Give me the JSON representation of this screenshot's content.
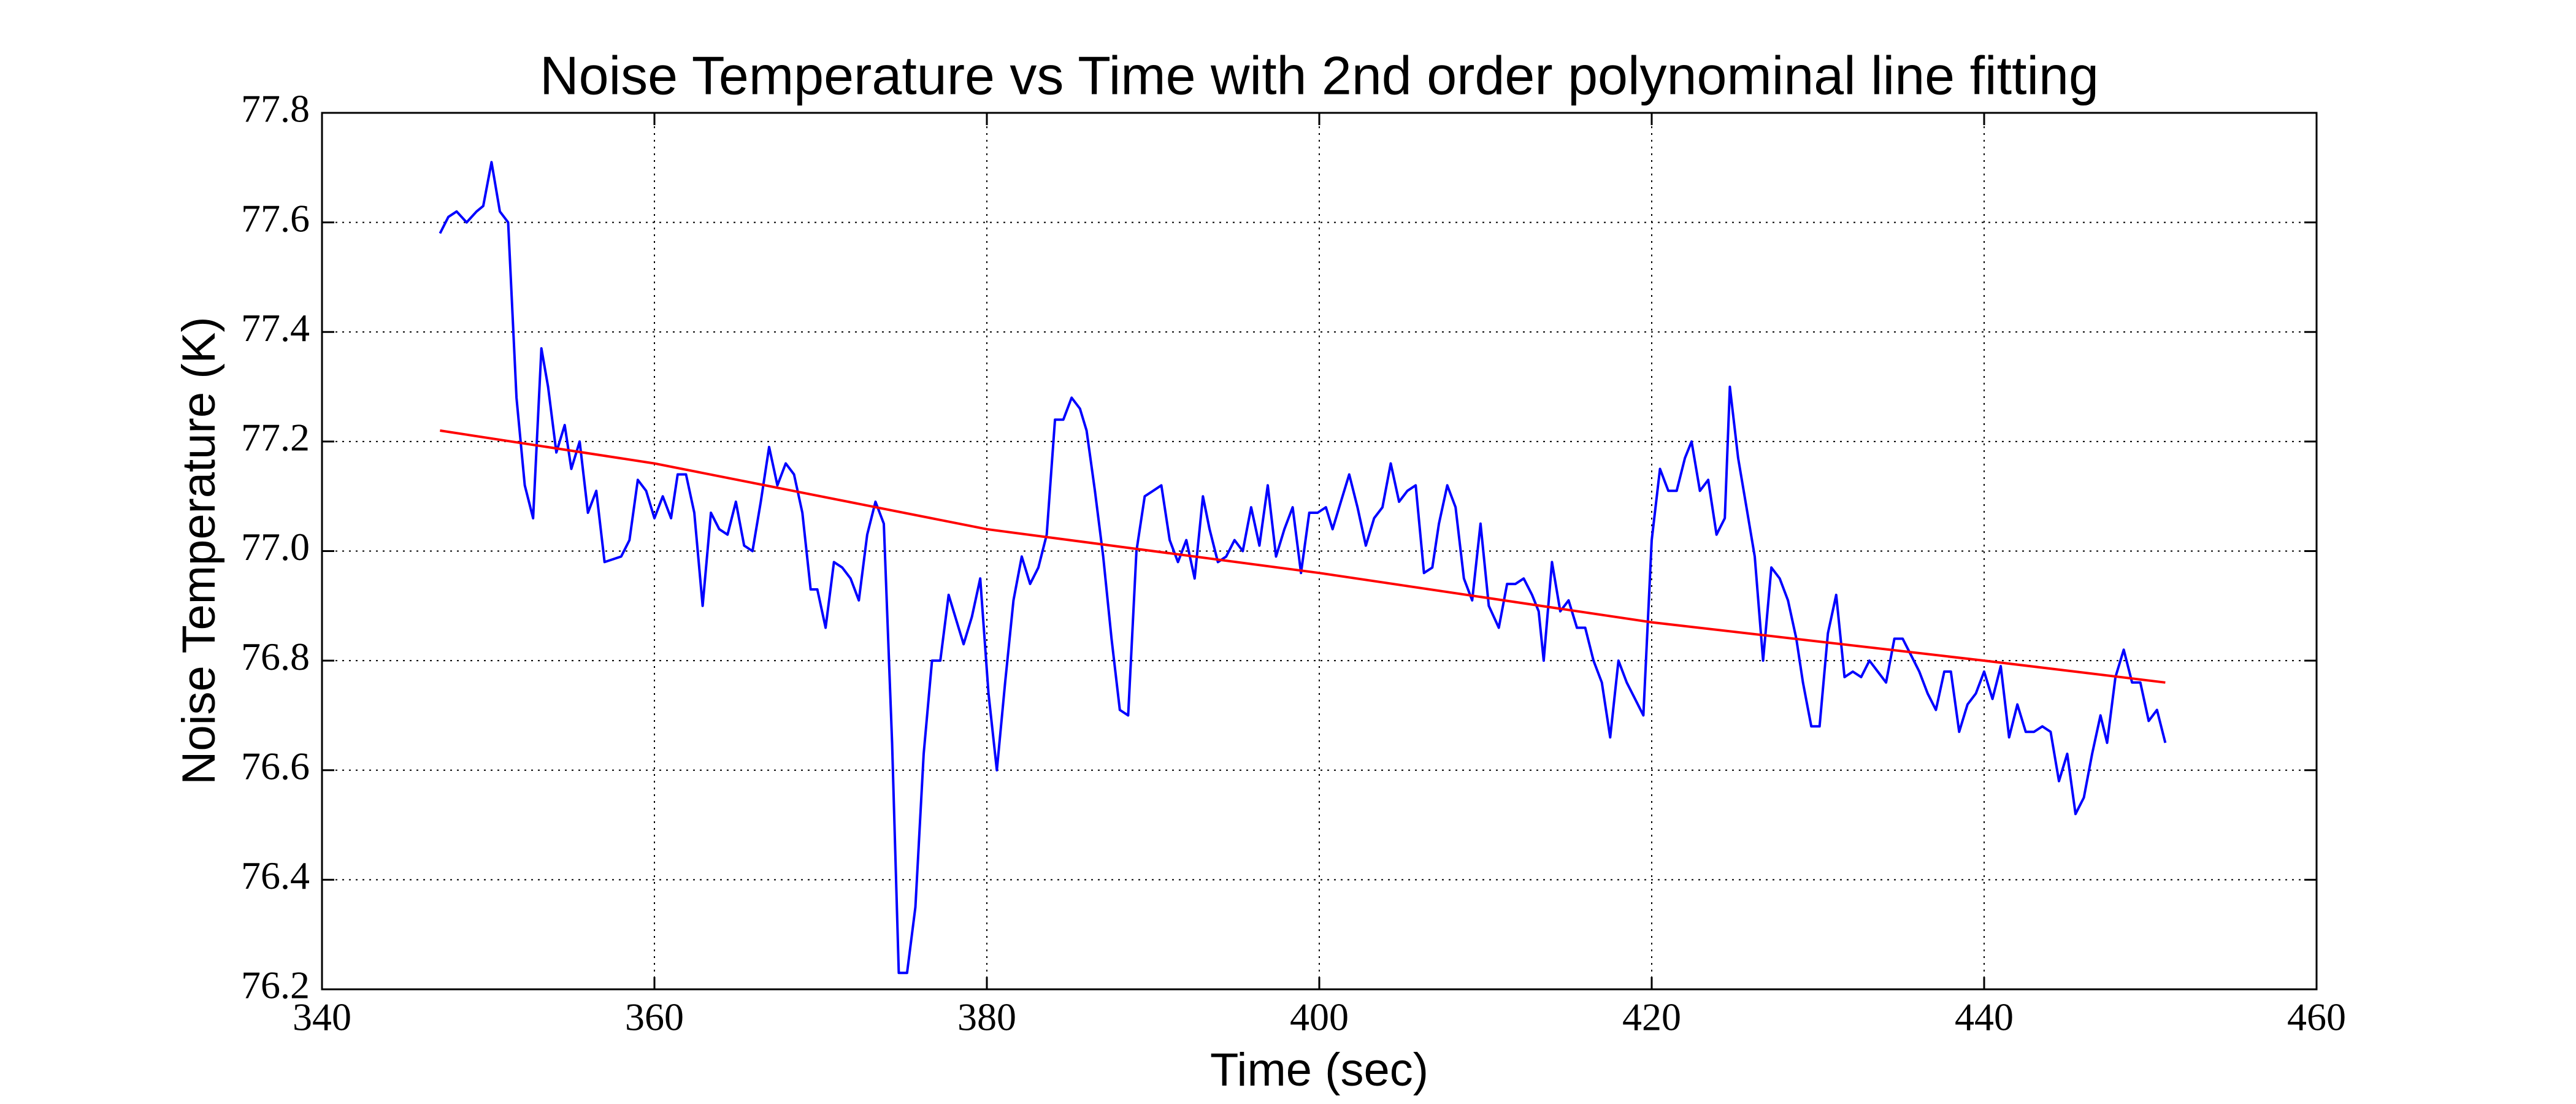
{
  "chart_data": {
    "type": "line",
    "title": "Noise Temperature vs Time with 2nd order polynominal line fitting",
    "xlabel": "Time (sec)",
    "ylabel": "Noise Temperature (K)",
    "xlim": [
      340,
      460
    ],
    "xticks": [
      340,
      360,
      380,
      400,
      420,
      440,
      460
    ],
    "ylim": [
      76.2,
      77.8
    ],
    "yticks": [
      76.2,
      76.4,
      76.6,
      76.8,
      {
        "value": 77,
        "label": "77.0"
      },
      77.2,
      77.4,
      77.6,
      77.8
    ],
    "grid": true,
    "series": [
      {
        "color": "#0000ff",
        "x": [
          347.1,
          347.6,
          348.1,
          348.7,
          349.3,
          349.7,
          350.2,
          350.7,
          351.2,
          351.7,
          352.2,
          352.7,
          353.2,
          353.6,
          354.1,
          354.6,
          355.0,
          355.5,
          356.0,
          356.5,
          357.0,
          358.0,
          358.5,
          359.0,
          359.5,
          360.0,
          360.5,
          361.0,
          361.4,
          361.9,
          362.4,
          362.9,
          363.4,
          363.9,
          364.4,
          364.9,
          365.4,
          365.9,
          366.4,
          366.9,
          367.4,
          367.9,
          368.4,
          368.9,
          369.4,
          369.8,
          370.3,
          370.8,
          371.3,
          371.8,
          372.3,
          372.8,
          373.3,
          373.8,
          374.3,
          374.7,
          375.2,
          375.7,
          376.2,
          376.7,
          377.2,
          377.7,
          378.2,
          378.6,
          379.1,
          379.6,
          380.1,
          380.6,
          381.1,
          381.6,
          382.1,
          382.6,
          383.1,
          383.6,
          384.1,
          384.6,
          385.1,
          385.6,
          386.0,
          386.5,
          387.0,
          387.5,
          388.0,
          388.5,
          389.0,
          389.5,
          390.0,
          390.5,
          391.0,
          391.5,
          392.0,
          392.5,
          393.0,
          393.4,
          393.9,
          394.4,
          394.9,
          395.4,
          395.9,
          396.4,
          396.9,
          397.4,
          397.9,
          398.4,
          398.9,
          399.4,
          399.9,
          400.4,
          400.8,
          401.3,
          401.8,
          402.3,
          402.8,
          403.3,
          403.8,
          404.3,
          404.8,
          405.3,
          405.8,
          406.3,
          406.8,
          407.2,
          407.7,
          408.2,
          408.7,
          409.2,
          409.7,
          410.2,
          410.8,
          411.3,
          411.8,
          412.3,
          412.8,
          413.2,
          413.5,
          414.0,
          414.5,
          415.0,
          415.5,
          416.0,
          416.5,
          417.0,
          417.5,
          418.0,
          418.5,
          419.0,
          419.5,
          420.0,
          420.5,
          421.0,
          421.5,
          422.0,
          422.4,
          422.9,
          423.4,
          423.9,
          424.4,
          424.7,
          425.2,
          425.7,
          426.2,
          426.7,
          427.2,
          427.7,
          428.2,
          428.7,
          429.1,
          429.6,
          430.1,
          430.6,
          431.1,
          431.6,
          432.1,
          432.6,
          433.1,
          433.6,
          434.1,
          434.6,
          435.1,
          435.6,
          436.1,
          436.6,
          437.1,
          437.6,
          438.0,
          438.5,
          439.0,
          439.5,
          440.0,
          440.5,
          441.0,
          441.5,
          442.0,
          442.5,
          443.0,
          443.5,
          444.0,
          444.5,
          445.0,
          445.5,
          446.0,
          446.5,
          447.0,
          447.4,
          447.9,
          448.4,
          448.9,
          449.4,
          449.9,
          450.4,
          450.9
        ],
        "values": [
          77.58,
          77.61,
          77.62,
          77.6,
          77.62,
          77.63,
          77.71,
          77.62,
          77.6,
          77.28,
          77.12,
          77.06,
          77.37,
          77.3,
          77.18,
          77.23,
          77.15,
          77.2,
          77.07,
          77.11,
          76.98,
          76.99,
          77.02,
          77.13,
          77.11,
          77.06,
          77.1,
          77.06,
          77.14,
          77.14,
          77.07,
          76.9,
          77.07,
          77.04,
          77.03,
          77.09,
          77.01,
          77.0,
          77.09,
          77.19,
          77.12,
          77.16,
          77.14,
          77.07,
          76.93,
          76.93,
          76.86,
          76.98,
          76.97,
          76.95,
          76.91,
          77.03,
          77.09,
          77.05,
          76.65,
          76.23,
          76.23,
          76.35,
          76.63,
          76.8,
          76.8,
          76.92,
          76.87,
          76.83,
          76.88,
          76.95,
          76.74,
          76.6,
          76.76,
          76.91,
          76.99,
          76.94,
          76.97,
          77.03,
          77.24,
          77.24,
          77.28,
          77.26,
          77.22,
          77.11,
          76.99,
          76.84,
          76.71,
          76.7,
          77.0,
          77.1,
          77.11,
          77.12,
          77.02,
          76.98,
          77.02,
          76.95,
          77.1,
          77.04,
          76.98,
          76.99,
          77.02,
          77.0,
          77.08,
          77.01,
          77.12,
          76.99,
          77.04,
          77.08,
          76.96,
          77.07,
          77.07,
          77.08,
          77.04,
          77.09,
          77.14,
          77.08,
          77.01,
          77.06,
          77.08,
          77.16,
          77.09,
          77.11,
          77.12,
          76.96,
          76.97,
          77.05,
          77.12,
          77.08,
          76.95,
          76.91,
          77.05,
          76.9,
          76.86,
          76.94,
          76.94,
          76.95,
          76.92,
          76.89,
          76.8,
          76.98,
          76.89,
          76.91,
          76.86,
          76.86,
          76.8,
          76.76,
          76.66,
          76.8,
          76.76,
          76.73,
          76.7,
          77.02,
          77.15,
          77.11,
          77.11,
          77.17,
          77.2,
          77.11,
          77.13,
          77.03,
          77.06,
          77.3,
          77.17,
          77.08,
          76.99,
          76.8,
          76.97,
          76.95,
          76.91,
          76.84,
          76.76,
          76.68,
          76.68,
          76.85,
          76.92,
          76.77,
          76.78,
          76.77,
          76.8,
          76.78,
          76.76,
          76.84,
          76.84,
          76.81,
          76.78,
          76.74,
          76.71,
          76.78,
          76.78,
          76.67,
          76.72,
          76.74,
          76.78,
          76.73,
          76.79,
          76.66,
          76.72,
          76.67,
          76.67,
          76.68,
          76.67,
          76.58,
          76.63,
          76.52,
          76.55,
          76.63,
          76.7,
          76.65,
          76.77,
          76.82,
          76.76,
          76.76,
          76.69,
          76.71,
          76.65
        ]
      },
      {
        "color": "#ff0000",
        "x": [
          347.1,
          360,
          380,
          400,
          420,
          440,
          450.9
        ],
        "values": [
          77.22,
          77.16,
          77.04,
          76.96,
          76.87,
          76.8,
          76.76
        ]
      }
    ]
  }
}
